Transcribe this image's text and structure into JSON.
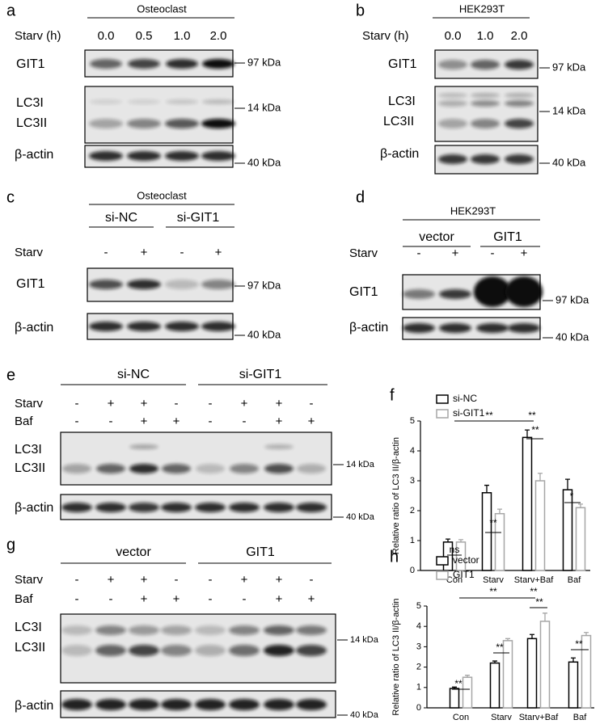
{
  "blots": [
    {
      "letter": "a",
      "cell": "Osteoclast",
      "conditions": [
        {
          "label": "Starv (h)",
          "lanes": [
            "0.0",
            "0.5",
            "1.0",
            "2.0"
          ]
        }
      ],
      "proteins": [
        "GIT1",
        "LC3I",
        "LC3II",
        "β-actin"
      ],
      "markers": [
        "97 kDa",
        "14 kDa",
        "40 kDa"
      ]
    },
    {
      "letter": "b",
      "cell": "HEK293T",
      "conditions": [
        {
          "label": "Starv (h)",
          "lanes": [
            "0.0",
            "1.0",
            "2.0"
          ]
        }
      ],
      "proteins": [
        "GIT1",
        "LC3I",
        "LC3II",
        "β-actin"
      ],
      "markers": [
        "97 kDa",
        "14 kDa",
        "40 kDa"
      ]
    },
    {
      "letter": "c",
      "cell": "Osteoclast",
      "groups": [
        "si-NC",
        "si-GIT1"
      ],
      "conditions": [
        {
          "label": "Starv",
          "lanes": [
            "-",
            "+",
            "-",
            "+"
          ]
        }
      ],
      "proteins": [
        "GIT1",
        "β-actin"
      ],
      "markers": [
        "97 kDa",
        "40 kDa"
      ]
    },
    {
      "letter": "d",
      "cell": "HEK293T",
      "groups": [
        "vector",
        "GIT1"
      ],
      "conditions": [
        {
          "label": "Starv",
          "lanes": [
            "-",
            "+",
            "-",
            "+"
          ]
        }
      ],
      "proteins": [
        "GIT1",
        "β-actin"
      ],
      "markers": [
        "97 kDa",
        "40 kDa"
      ]
    },
    {
      "letter": "e",
      "groups": [
        "si-NC",
        "si-GIT1"
      ],
      "conditions": [
        {
          "label": "Starv",
          "lanes": [
            "-",
            "+",
            "+",
            "-",
            "-",
            "+",
            "+",
            "-"
          ]
        },
        {
          "label": "Baf",
          "lanes": [
            "-",
            "-",
            "+",
            "+",
            "-",
            "-",
            "+",
            "+"
          ]
        }
      ],
      "proteins": [
        "LC3I",
        "LC3II",
        "β-actin"
      ],
      "markers": [
        "14 kDa",
        "40 kDa"
      ]
    },
    {
      "letter": "g",
      "groups": [
        "vector",
        "GIT1"
      ],
      "conditions": [
        {
          "label": "Starv",
          "lanes": [
            "-",
            "+",
            "+",
            "-",
            "-",
            "+",
            "+",
            "-"
          ]
        },
        {
          "label": "Baf",
          "lanes": [
            "-",
            "-",
            "+",
            "+",
            "-",
            "-",
            "+",
            "+"
          ]
        }
      ],
      "proteins": [
        "LC3I",
        "LC3II",
        "β-actin"
      ],
      "markers": [
        "14 kDa",
        "40 kDa"
      ]
    }
  ],
  "chart_data": [
    {
      "type": "bar",
      "letter": "f",
      "ylabel": "Relative ratio of LC3 II/β-actin",
      "categories": [
        "Con",
        "Starv",
        "Starv+Baf",
        "Baf"
      ],
      "ylim": [
        0,
        5
      ],
      "yticks": [
        0,
        1,
        2,
        3,
        4,
        5
      ],
      "series": [
        {
          "name": "si-NC",
          "color": "#000000",
          "values": [
            0.95,
            2.6,
            4.45,
            2.7
          ],
          "errors": [
            0.1,
            0.25,
            0.25,
            0.35
          ]
        },
        {
          "name": "si-GIT1",
          "color": "#a6a6a6",
          "values": [
            0.95,
            1.9,
            3.0,
            2.1
          ],
          "errors": [
            0.08,
            0.15,
            0.25,
            0.12
          ]
        }
      ],
      "annotations": [
        "ns",
        "**",
        "**",
        "**",
        "**",
        "*"
      ]
    },
    {
      "type": "bar",
      "letter": "h",
      "ylabel": "Relative ratio of LC3 II/β-actin",
      "categories": [
        "Con",
        "Starv",
        "Starv+Baf",
        "Baf"
      ],
      "ylim": [
        0,
        5
      ],
      "yticks": [
        0,
        1,
        2,
        3,
        4,
        5
      ],
      "series": [
        {
          "name": "vector",
          "color": "#000000",
          "values": [
            0.95,
            2.2,
            3.4,
            2.25
          ],
          "errors": [
            0.07,
            0.1,
            0.2,
            0.2
          ]
        },
        {
          "name": "GIT1",
          "color": "#a6a6a6",
          "values": [
            1.5,
            3.3,
            4.25,
            3.55
          ],
          "errors": [
            0.1,
            0.1,
            0.4,
            0.15
          ]
        }
      ],
      "annotations": [
        "**",
        "**",
        "**",
        "**",
        "**",
        "**"
      ]
    }
  ]
}
